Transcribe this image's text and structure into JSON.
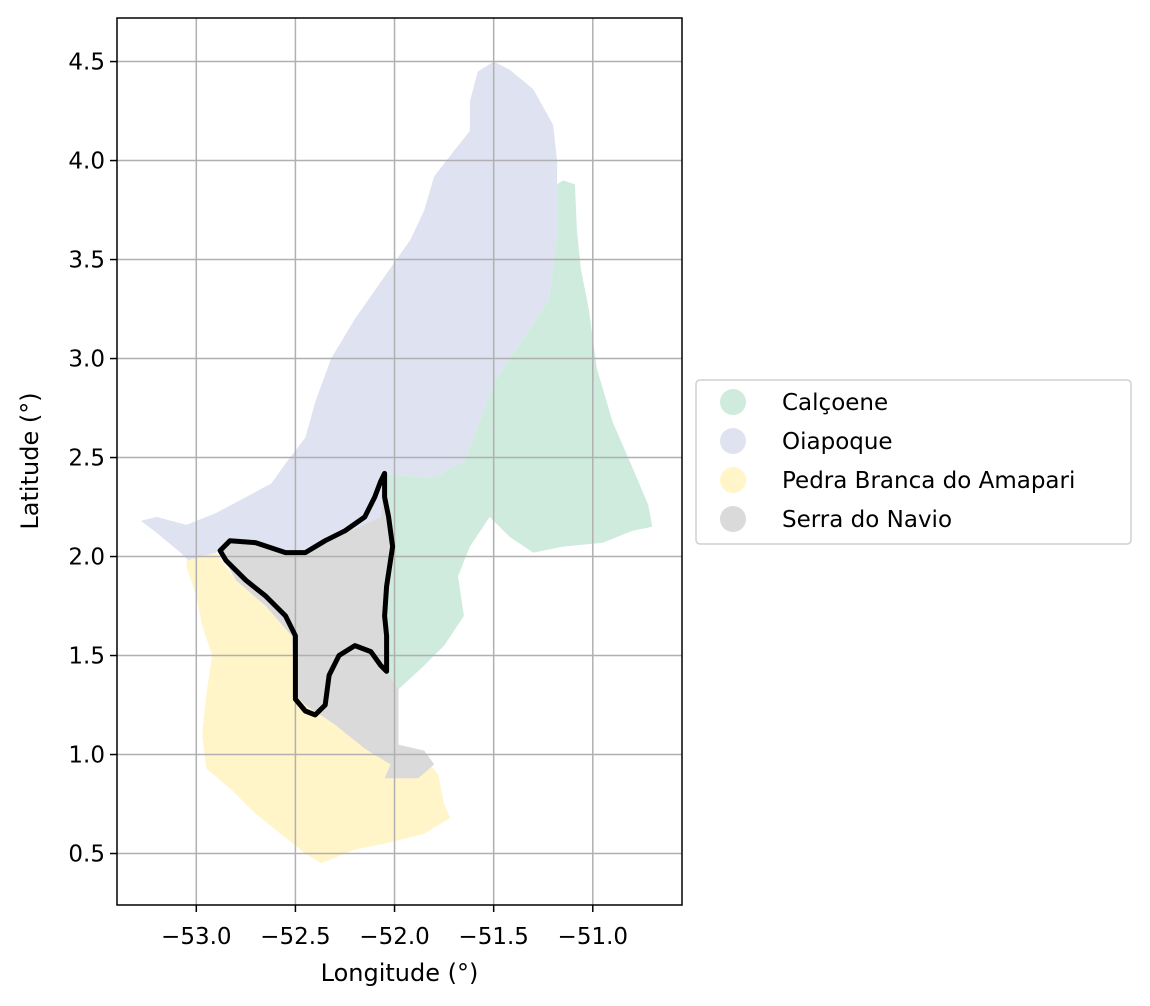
{
  "chart_data": {
    "type": "map",
    "xlabel": "Longitude (°)",
    "ylabel": "Latitude (°)",
    "xlim": [
      -53.4,
      -50.55
    ],
    "ylim": [
      0.24,
      4.72
    ],
    "xticks": [
      -53.0,
      -52.5,
      -52.0,
      -51.5,
      -51.0
    ],
    "xtick_labels": [
      "−53.0",
      "−52.5",
      "−52.0",
      "−51.5",
      "−51.0"
    ],
    "yticks": [
      0.5,
      1.0,
      1.5,
      2.0,
      2.5,
      3.0,
      3.5,
      4.0,
      4.5
    ],
    "ytick_labels": [
      "0.5",
      "1.0",
      "1.5",
      "2.0",
      "2.5",
      "3.0",
      "3.5",
      "4.0",
      "4.5"
    ],
    "grid": true,
    "legend_position": "right",
    "colors": {
      "Calçoene": "#ceebdd",
      "Oiapoque": "#dfe3f1",
      "Pedra Branca do Amapari": "#fff5c9",
      "Serra do Navio": "#dadada",
      "highlight_outline": "#000000",
      "grid": "#b0b0b0"
    },
    "regions": [
      {
        "name": "Oiapoque",
        "color": "#dfe3f1",
        "polygon": [
          [
            -53.28,
            2.18
          ],
          [
            -53.2,
            2.2
          ],
          [
            -53.05,
            2.16
          ],
          [
            -52.9,
            2.22
          ],
          [
            -52.75,
            2.3
          ],
          [
            -52.62,
            2.37
          ],
          [
            -52.55,
            2.47
          ],
          [
            -52.45,
            2.6
          ],
          [
            -52.4,
            2.78
          ],
          [
            -52.32,
            3.0
          ],
          [
            -52.2,
            3.2
          ],
          [
            -52.06,
            3.4
          ],
          [
            -51.92,
            3.6
          ],
          [
            -51.85,
            3.75
          ],
          [
            -51.8,
            3.92
          ],
          [
            -51.7,
            4.05
          ],
          [
            -51.62,
            4.15
          ],
          [
            -51.62,
            4.3
          ],
          [
            -51.58,
            4.45
          ],
          [
            -51.5,
            4.5
          ],
          [
            -51.42,
            4.46
          ],
          [
            -51.3,
            4.36
          ],
          [
            -51.2,
            4.18
          ],
          [
            -51.18,
            4.0
          ],
          [
            -51.18,
            3.62
          ],
          [
            -51.22,
            3.3
          ],
          [
            -51.35,
            3.1
          ],
          [
            -51.5,
            2.88
          ],
          [
            -51.58,
            2.65
          ],
          [
            -51.65,
            2.48
          ],
          [
            -51.8,
            2.4
          ],
          [
            -52.0,
            2.41
          ],
          [
            -52.05,
            2.42
          ],
          [
            -52.07,
            2.2
          ],
          [
            -52.2,
            2.14
          ],
          [
            -52.32,
            2.08
          ],
          [
            -52.5,
            2.02
          ],
          [
            -52.7,
            2.06
          ],
          [
            -52.85,
            2.08
          ],
          [
            -52.9,
            2.02
          ],
          [
            -53.03,
            1.97
          ],
          [
            -53.08,
            2.02
          ],
          [
            -53.2,
            2.12
          ]
        ]
      },
      {
        "name": "Calçoene",
        "color": "#ceebdd",
        "polygon": [
          [
            -51.15,
            3.9
          ],
          [
            -51.09,
            3.88
          ],
          [
            -51.08,
            3.65
          ],
          [
            -51.06,
            3.45
          ],
          [
            -51.02,
            3.25
          ],
          [
            -50.98,
            2.95
          ],
          [
            -50.9,
            2.68
          ],
          [
            -50.8,
            2.45
          ],
          [
            -50.72,
            2.26
          ],
          [
            -50.7,
            2.15
          ],
          [
            -50.8,
            2.13
          ],
          [
            -50.95,
            2.07
          ],
          [
            -51.15,
            2.05
          ],
          [
            -51.3,
            2.02
          ],
          [
            -51.42,
            2.1
          ],
          [
            -51.52,
            2.2
          ],
          [
            -51.62,
            2.05
          ],
          [
            -51.68,
            1.9
          ],
          [
            -51.65,
            1.7
          ],
          [
            -51.75,
            1.55
          ],
          [
            -51.85,
            1.45
          ],
          [
            -51.98,
            1.33
          ],
          [
            -52.04,
            1.42
          ],
          [
            -52.05,
            1.6
          ],
          [
            -52.03,
            1.8
          ],
          [
            -52.0,
            2.05
          ],
          [
            -52.05,
            2.42
          ],
          [
            -52.0,
            2.41
          ],
          [
            -51.8,
            2.4
          ],
          [
            -51.65,
            2.48
          ],
          [
            -51.58,
            2.65
          ],
          [
            -51.5,
            2.88
          ],
          [
            -51.35,
            3.1
          ],
          [
            -51.22,
            3.3
          ],
          [
            -51.18,
            3.62
          ],
          [
            -51.18,
            3.88
          ]
        ]
      },
      {
        "name": "Pedra Branca do Amapari",
        "color": "#fff5c9",
        "polygon": [
          [
            -53.05,
            1.98
          ],
          [
            -52.9,
            2.02
          ],
          [
            -52.8,
            1.88
          ],
          [
            -52.65,
            1.75
          ],
          [
            -52.52,
            1.6
          ],
          [
            -52.5,
            1.3
          ],
          [
            -52.35,
            1.18
          ],
          [
            -52.22,
            1.15
          ],
          [
            -52.1,
            1.02
          ],
          [
            -51.97,
            0.95
          ],
          [
            -51.85,
            0.98
          ],
          [
            -51.78,
            0.9
          ],
          [
            -51.75,
            0.75
          ],
          [
            -51.72,
            0.68
          ],
          [
            -51.85,
            0.6
          ],
          [
            -52.05,
            0.55
          ],
          [
            -52.2,
            0.52
          ],
          [
            -52.3,
            0.48
          ],
          [
            -52.37,
            0.45
          ],
          [
            -52.45,
            0.5
          ],
          [
            -52.55,
            0.58
          ],
          [
            -52.7,
            0.7
          ],
          [
            -52.82,
            0.82
          ],
          [
            -52.95,
            0.93
          ],
          [
            -52.97,
            1.1
          ],
          [
            -52.95,
            1.3
          ],
          [
            -52.92,
            1.5
          ],
          [
            -52.97,
            1.65
          ],
          [
            -53.0,
            1.8
          ],
          [
            -53.05,
            1.95
          ]
        ]
      },
      {
        "name": "Serra do Navio",
        "color": "#dadada",
        "polygon": [
          [
            -52.85,
            2.08
          ],
          [
            -52.7,
            2.06
          ],
          [
            -52.5,
            2.02
          ],
          [
            -52.32,
            2.08
          ],
          [
            -52.2,
            2.14
          ],
          [
            -52.07,
            2.2
          ],
          [
            -52.05,
            2.42
          ],
          [
            -52.0,
            2.05
          ],
          [
            -52.03,
            1.8
          ],
          [
            -52.05,
            1.6
          ],
          [
            -52.04,
            1.42
          ],
          [
            -51.98,
            1.33
          ],
          [
            -51.98,
            1.05
          ],
          [
            -51.85,
            1.02
          ],
          [
            -51.8,
            0.95
          ],
          [
            -51.88,
            0.88
          ],
          [
            -51.97,
            0.88
          ],
          [
            -52.05,
            0.88
          ],
          [
            -52.02,
            0.95
          ],
          [
            -52.15,
            1.03
          ],
          [
            -52.3,
            1.15
          ],
          [
            -52.45,
            1.25
          ],
          [
            -52.5,
            1.3
          ],
          [
            -52.52,
            1.6
          ],
          [
            -52.65,
            1.75
          ],
          [
            -52.8,
            1.88
          ],
          [
            -52.88,
            2.02
          ]
        ]
      }
    ],
    "highlight_outline": {
      "color": "#000000",
      "polygon": [
        [
          -52.88,
          2.03
        ],
        [
          -52.83,
          2.08
        ],
        [
          -52.7,
          2.07
        ],
        [
          -52.55,
          2.02
        ],
        [
          -52.45,
          2.02
        ],
        [
          -52.35,
          2.08
        ],
        [
          -52.25,
          2.13
        ],
        [
          -52.15,
          2.2
        ],
        [
          -52.1,
          2.3
        ],
        [
          -52.07,
          2.38
        ],
        [
          -52.05,
          2.42
        ],
        [
          -52.05,
          2.3
        ],
        [
          -52.03,
          2.2
        ],
        [
          -52.01,
          2.05
        ],
        [
          -52.04,
          1.85
        ],
        [
          -52.05,
          1.7
        ],
        [
          -52.04,
          1.6
        ],
        [
          -52.04,
          1.42
        ],
        [
          -52.07,
          1.45
        ],
        [
          -52.12,
          1.52
        ],
        [
          -52.2,
          1.55
        ],
        [
          -52.28,
          1.5
        ],
        [
          -52.33,
          1.4
        ],
        [
          -52.35,
          1.25
        ],
        [
          -52.4,
          1.2
        ],
        [
          -52.45,
          1.22
        ],
        [
          -52.5,
          1.28
        ],
        [
          -52.5,
          1.42
        ],
        [
          -52.5,
          1.6
        ],
        [
          -52.55,
          1.7
        ],
        [
          -52.65,
          1.8
        ],
        [
          -52.75,
          1.88
        ],
        [
          -52.85,
          1.98
        ]
      ]
    },
    "legend": [
      {
        "label": "Calçoene",
        "color": "#ceebdd"
      },
      {
        "label": "Oiapoque",
        "color": "#dfe3f1"
      },
      {
        "label": "Pedra Branca do Amapari",
        "color": "#fff5c9"
      },
      {
        "label": "Serra do Navio",
        "color": "#dadada"
      }
    ]
  }
}
